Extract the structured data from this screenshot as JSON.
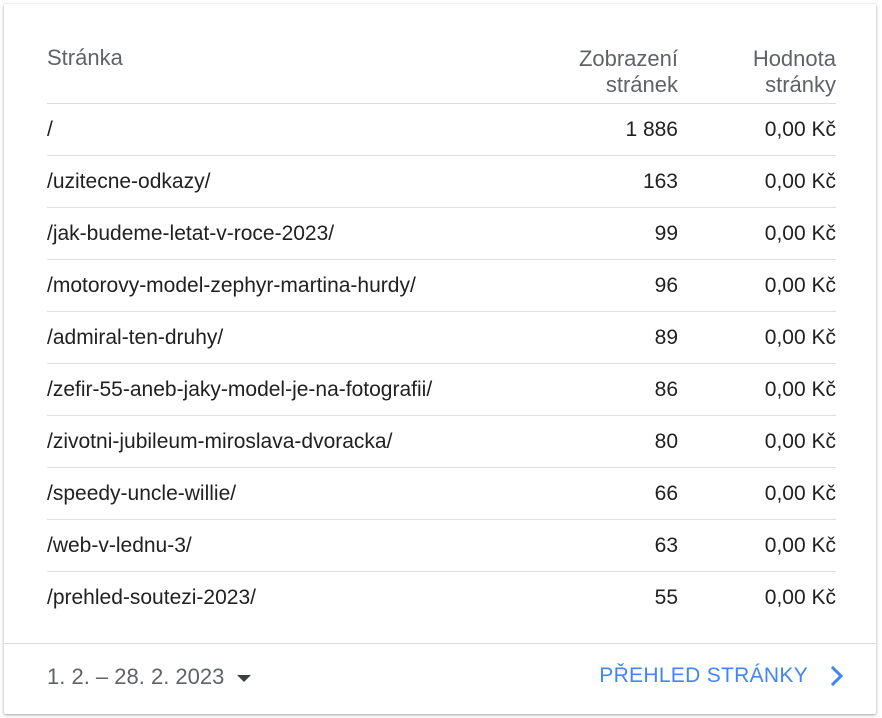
{
  "table": {
    "headers": {
      "page": "Stránka",
      "views_line1": "Zobrazení",
      "views_line2": "stránek",
      "value_line1": "Hodnota",
      "value_line2": "stránky"
    },
    "rows": [
      {
        "page": "/",
        "views": "1 886",
        "value": "0,00 Kč"
      },
      {
        "page": "/uzitecne-odkazy/",
        "views": "163",
        "value": "0,00 Kč"
      },
      {
        "page": "/jak-budeme-letat-v-roce-2023/",
        "views": "99",
        "value": "0,00 Kč"
      },
      {
        "page": "/motorovy-model-zephyr-martina-hurdy/",
        "views": "96",
        "value": "0,00 Kč"
      },
      {
        "page": "/admiral-ten-druhy/",
        "views": "89",
        "value": "0,00 Kč"
      },
      {
        "page": "/zefir-55-aneb-jaky-model-je-na-fotografii/",
        "views": "86",
        "value": "0,00 Kč"
      },
      {
        "page": "/zivotni-jubileum-miroslava-dvoracka/",
        "views": "80",
        "value": "0,00 Kč"
      },
      {
        "page": "/speedy-uncle-willie/",
        "views": "66",
        "value": "0,00 Kč"
      },
      {
        "page": "/web-v-lednu-3/",
        "views": "63",
        "value": "0,00 Kč"
      },
      {
        "page": "/prehled-soutezi-2023/",
        "views": "55",
        "value": "0,00 Kč"
      }
    ]
  },
  "footer": {
    "date_range": "1. 2. – 28. 2. 2023",
    "report_link": "PŘEHLED STRÁNKY",
    "date_icon": "caret-down-icon",
    "link_icon": "chevron-right-icon"
  },
  "colors": {
    "accent": "#4285f4",
    "header_text": "#5f6368",
    "body_text": "#212121"
  }
}
